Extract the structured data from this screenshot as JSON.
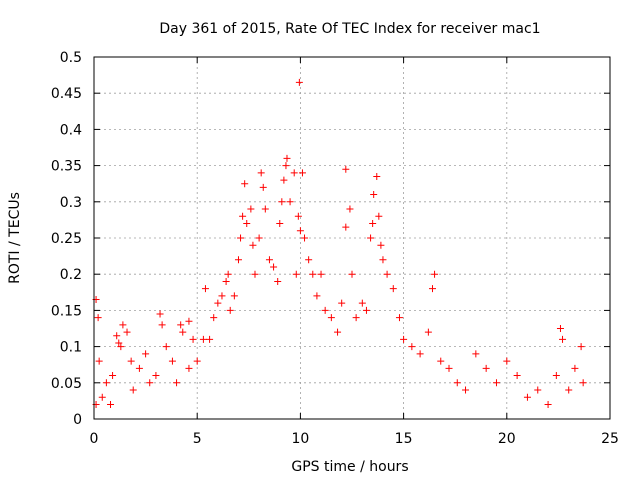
{
  "chart_data": {
    "type": "scatter",
    "title": "Day 361 of 2015, Rate Of TEC Index for receiver mac1",
    "xlabel": "GPS time / hours",
    "ylabel": "ROTI / TECUs",
    "xlim": [
      0,
      25
    ],
    "ylim": [
      0,
      0.5
    ],
    "x_ticks": [
      0,
      5,
      10,
      15,
      20,
      25
    ],
    "x_tick_labels": [
      "0",
      "5",
      "10",
      "15",
      "20",
      "25"
    ],
    "y_ticks": [
      0,
      0.05,
      0.1,
      0.15,
      0.2,
      0.25,
      0.3,
      0.35,
      0.4,
      0.45,
      0.5
    ],
    "y_tick_labels": [
      "0",
      "0.05",
      "0.1",
      "0.15",
      "0.2",
      "0.25",
      "0.3",
      "0.35",
      "0.4",
      "0.45",
      "0.5"
    ],
    "grid": true,
    "marker": "plus",
    "marker_color": "#ff0000",
    "series": [
      {
        "points": [
          [
            0.1,
            0.02
          ],
          [
            0.1,
            0.165
          ],
          [
            0.2,
            0.14
          ],
          [
            0.25,
            0.08
          ],
          [
            0.4,
            0.03
          ],
          [
            0.6,
            0.05
          ],
          [
            0.8,
            0.02
          ],
          [
            0.9,
            0.06
          ],
          [
            1.1,
            0.115
          ],
          [
            1.2,
            0.105
          ],
          [
            1.3,
            0.1
          ],
          [
            1.4,
            0.13
          ],
          [
            1.6,
            0.12
          ],
          [
            1.8,
            0.08
          ],
          [
            1.9,
            0.04
          ],
          [
            2.2,
            0.07
          ],
          [
            2.5,
            0.09
          ],
          [
            2.7,
            0.05
          ],
          [
            3.0,
            0.06
          ],
          [
            3.2,
            0.145
          ],
          [
            3.3,
            0.13
          ],
          [
            3.5,
            0.1
          ],
          [
            3.8,
            0.08
          ],
          [
            4.0,
            0.05
          ],
          [
            4.2,
            0.13
          ],
          [
            4.3,
            0.12
          ],
          [
            4.6,
            0.07
          ],
          [
            4.8,
            0.11
          ],
          [
            4.6,
            0.135
          ],
          [
            5.0,
            0.08
          ],
          [
            5.3,
            0.11
          ],
          [
            5.4,
            0.18
          ],
          [
            5.6,
            0.11
          ],
          [
            5.8,
            0.14
          ],
          [
            6.0,
            0.16
          ],
          [
            6.2,
            0.17
          ],
          [
            6.4,
            0.19
          ],
          [
            6.5,
            0.2
          ],
          [
            6.6,
            0.15
          ],
          [
            6.8,
            0.17
          ],
          [
            7.0,
            0.22
          ],
          [
            7.1,
            0.25
          ],
          [
            7.2,
            0.28
          ],
          [
            7.3,
            0.325
          ],
          [
            7.4,
            0.27
          ],
          [
            7.6,
            0.29
          ],
          [
            7.7,
            0.24
          ],
          [
            7.8,
            0.2
          ],
          [
            8.0,
            0.25
          ],
          [
            8.1,
            0.34
          ],
          [
            8.2,
            0.32
          ],
          [
            8.3,
            0.29
          ],
          [
            8.5,
            0.22
          ],
          [
            8.7,
            0.21
          ],
          [
            8.9,
            0.19
          ],
          [
            9.0,
            0.27
          ],
          [
            9.1,
            0.3
          ],
          [
            9.2,
            0.33
          ],
          [
            9.3,
            0.35
          ],
          [
            9.35,
            0.36
          ],
          [
            9.5,
            0.3
          ],
          [
            9.7,
            0.34
          ],
          [
            9.8,
            0.2
          ],
          [
            9.9,
            0.28
          ],
          [
            9.95,
            0.465
          ],
          [
            10.0,
            0.26
          ],
          [
            10.1,
            0.34
          ],
          [
            10.2,
            0.25
          ],
          [
            10.4,
            0.22
          ],
          [
            10.6,
            0.2
          ],
          [
            10.8,
            0.17
          ],
          [
            11.0,
            0.2
          ],
          [
            11.2,
            0.15
          ],
          [
            11.5,
            0.14
          ],
          [
            11.8,
            0.12
          ],
          [
            12.0,
            0.16
          ],
          [
            12.2,
            0.265
          ],
          [
            12.2,
            0.345
          ],
          [
            12.4,
            0.29
          ],
          [
            12.5,
            0.2
          ],
          [
            12.7,
            0.14
          ],
          [
            13.0,
            0.16
          ],
          [
            13.2,
            0.15
          ],
          [
            13.4,
            0.25
          ],
          [
            13.5,
            0.27
          ],
          [
            13.55,
            0.31
          ],
          [
            13.7,
            0.335
          ],
          [
            13.8,
            0.28
          ],
          [
            13.9,
            0.24
          ],
          [
            14.0,
            0.22
          ],
          [
            14.2,
            0.2
          ],
          [
            14.5,
            0.18
          ],
          [
            14.8,
            0.14
          ],
          [
            15.0,
            0.11
          ],
          [
            15.4,
            0.1
          ],
          [
            15.8,
            0.09
          ],
          [
            16.2,
            0.12
          ],
          [
            16.4,
            0.18
          ],
          [
            16.5,
            0.2
          ],
          [
            16.8,
            0.08
          ],
          [
            17.2,
            0.07
          ],
          [
            17.6,
            0.05
          ],
          [
            18.0,
            0.04
          ],
          [
            18.5,
            0.09
          ],
          [
            19.0,
            0.07
          ],
          [
            19.5,
            0.05
          ],
          [
            20.0,
            0.08
          ],
          [
            20.5,
            0.06
          ],
          [
            21.0,
            0.03
          ],
          [
            21.5,
            0.04
          ],
          [
            22.0,
            0.02
          ],
          [
            22.4,
            0.06
          ],
          [
            22.6,
            0.125
          ],
          [
            22.7,
            0.11
          ],
          [
            23.0,
            0.04
          ],
          [
            23.3,
            0.07
          ],
          [
            23.6,
            0.1
          ],
          [
            23.7,
            0.05
          ]
        ]
      }
    ]
  }
}
